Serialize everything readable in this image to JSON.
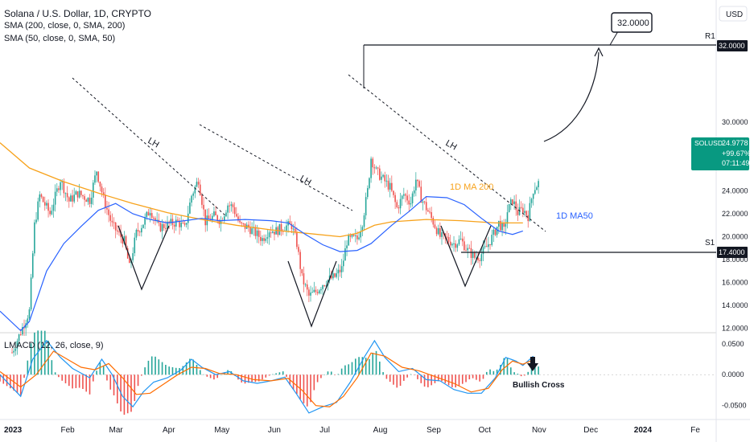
{
  "header": {
    "title": "Solana / U.S. Dollar, 1D, CRYPTO",
    "sma200_label": "SMA (200, close, 0, SMA, 200)",
    "sma50_label": "SMA (50, close, 0, SMA, 50)",
    "macd_label": "LMACD (12, 26, close, 9)"
  },
  "currency_button": "USD",
  "symbol_tag": {
    "symbol": "SOLUSD",
    "price": "24.9778",
    "change": "+99.67%",
    "countdown": "07:11:49",
    "color": "#089981"
  },
  "annotations": {
    "target_callout": "32.0000",
    "r1_label": "R1",
    "r1_price": "32.0000",
    "s1_label": "S1",
    "s1_price": "17.4000",
    "lh_labels": [
      "LH",
      "LH",
      "LH"
    ],
    "ma200_label": "1D MA 200",
    "ma50_label": "1D MA50",
    "bullish_cross": "Bullish Cross"
  },
  "colors": {
    "up": "#26a69a",
    "down": "#ef5350",
    "ma200": "#f7a21b",
    "ma50": "#2962ff",
    "macd": "#2196f3",
    "signal": "#ff6d00",
    "hist_up": "#26a69a",
    "hist_down": "#ef5350"
  },
  "chart_data": [
    {
      "type": "candlestick",
      "title": "Solana / U.S. Dollar, 1D, CRYPTO",
      "x_ticks": [
        "2023",
        "Feb",
        "Mar",
        "Apr",
        "May",
        "Jun",
        "Jul",
        "Aug",
        "Sep",
        "Oct",
        "Nov",
        "Dec",
        "2024",
        "Fe"
      ],
      "y_ticks": [
        "32.0000",
        "30.0000",
        "28.0000",
        "26.0000",
        "24.0000",
        "22.0000",
        "20.0000",
        "18.0000",
        "16.0000",
        "14.0000",
        "12.0000"
      ],
      "ylim": [
        11.9,
        36.8
      ],
      "x_range_days": [
        -7,
        408
      ],
      "price_path": [
        [
          0,
          9.9
        ],
        [
          10,
          13.5
        ],
        [
          13,
          21.0
        ],
        [
          16,
          23.6
        ],
        [
          22,
          22.0
        ],
        [
          28,
          25.0
        ],
        [
          33,
          23.1
        ],
        [
          38,
          23.8
        ],
        [
          45,
          23.2
        ],
        [
          49,
          25.8
        ],
        [
          53,
          23.3
        ],
        [
          58,
          21.0
        ],
        [
          62,
          20.2
        ],
        [
          65,
          19.6
        ],
        [
          68,
          17.3
        ],
        [
          72,
          20.3
        ],
        [
          76,
          21.2
        ],
        [
          80,
          22.4
        ],
        [
          85,
          20.8
        ],
        [
          91,
          21.1
        ],
        [
          96,
          21.3
        ],
        [
          100,
          20.7
        ],
        [
          104,
          23.6
        ],
        [
          108,
          25.0
        ],
        [
          112,
          21.3
        ],
        [
          117,
          21.8
        ],
        [
          121,
          21.4
        ],
        [
          125,
          22.8
        ],
        [
          128,
          22.6
        ],
        [
          132,
          21.0
        ],
        [
          137,
          20.8
        ],
        [
          141,
          20.3
        ],
        [
          145,
          19.8
        ],
        [
          149,
          20.6
        ],
        [
          153,
          20.5
        ],
        [
          158,
          20.9
        ],
        [
          162,
          21.0
        ],
        [
          165,
          19.4
        ],
        [
          168,
          16.4
        ],
        [
          172,
          14.8
        ],
        [
          176,
          15.2
        ],
        [
          180,
          15.9
        ],
        [
          184,
          16.3
        ],
        [
          187,
          16.5
        ],
        [
          191,
          17.2
        ],
        [
          194,
          19.6
        ],
        [
          197,
          19.8
        ],
        [
          200,
          19.8
        ],
        [
          203,
          21.3
        ],
        [
          206,
          24.0
        ],
        [
          208,
          26.9
        ],
        [
          211,
          25.7
        ],
        [
          215,
          25.0
        ],
        [
          219,
          24.3
        ],
        [
          223,
          22.5
        ],
        [
          227,
          23.7
        ],
        [
          231,
          23.0
        ],
        [
          234,
          25.0
        ],
        [
          237,
          23.4
        ],
        [
          240,
          22.5
        ],
        [
          244,
          21.3
        ],
        [
          248,
          20.0
        ],
        [
          252,
          19.8
        ],
        [
          256,
          19.4
        ],
        [
          260,
          19.7
        ],
        [
          264,
          18.8
        ],
        [
          268,
          18.2
        ],
        [
          271,
          18.3
        ],
        [
          275,
          19.1
        ],
        [
          279,
          20.2
        ],
        [
          282,
          21.2
        ],
        [
          285,
          20.5
        ],
        [
          287,
          22.2
        ],
        [
          290,
          23.2
        ],
        [
          293,
          22.1
        ],
        [
          296,
          22.4
        ],
        [
          299,
          21.8
        ],
        [
          302,
          24.1
        ],
        [
          305,
          24.7
        ]
      ],
      "sma200": [
        [
          -7,
          28.2
        ],
        [
          10,
          26.0
        ],
        [
          30,
          24.8
        ],
        [
          50,
          23.8
        ],
        [
          70,
          22.9
        ],
        [
          90,
          22.1
        ],
        [
          110,
          21.5
        ],
        [
          130,
          21.0
        ],
        [
          150,
          20.6
        ],
        [
          170,
          20.3
        ],
        [
          190,
          20.0
        ],
        [
          200,
          20.3
        ],
        [
          210,
          21.0
        ],
        [
          220,
          21.3
        ],
        [
          240,
          21.5
        ],
        [
          260,
          21.4
        ],
        [
          280,
          21.2
        ],
        [
          296,
          21.2
        ]
      ],
      "sma50": [
        [
          -7,
          13.5
        ],
        [
          5,
          11.8
        ],
        [
          10,
          12.6
        ],
        [
          20,
          17.0
        ],
        [
          30,
          19.4
        ],
        [
          40,
          20.9
        ],
        [
          50,
          22.3
        ],
        [
          60,
          22.9
        ],
        [
          70,
          22.0
        ],
        [
          80,
          21.5
        ],
        [
          90,
          21.2
        ],
        [
          100,
          21.4
        ],
        [
          110,
          21.6
        ],
        [
          120,
          21.4
        ],
        [
          135,
          21.5
        ],
        [
          150,
          21.4
        ],
        [
          160,
          21.2
        ],
        [
          170,
          20.2
        ],
        [
          180,
          19.3
        ],
        [
          190,
          18.7
        ],
        [
          200,
          18.8
        ],
        [
          208,
          19.4
        ],
        [
          220,
          21.0
        ],
        [
          230,
          22.2
        ],
        [
          240,
          23.5
        ],
        [
          252,
          23.4
        ],
        [
          262,
          22.8
        ],
        [
          272,
          21.6
        ],
        [
          282,
          20.5
        ],
        [
          290,
          20.2
        ],
        [
          296,
          20.5
        ]
      ],
      "ylabel": "USD"
    },
    {
      "type": "bar",
      "title": "LMACD (12, 26, close, 9)",
      "y_ticks": [
        "0.0500",
        "0.0000",
        "-0.0500"
      ],
      "ylim": [
        -0.066,
        0.064
      ],
      "macd": [
        [
          -7,
          0.0
        ],
        [
          5,
          -0.035
        ],
        [
          12,
          0.025
        ],
        [
          20,
          0.055
        ],
        [
          28,
          0.028
        ],
        [
          35,
          0.01
        ],
        [
          45,
          -0.005
        ],
        [
          52,
          0.025
        ],
        [
          58,
          0.0
        ],
        [
          64,
          -0.035
        ],
        [
          70,
          -0.052
        ],
        [
          76,
          -0.028
        ],
        [
          82,
          -0.012
        ],
        [
          90,
          -0.005
        ],
        [
          98,
          0.008
        ],
        [
          104,
          0.025
        ],
        [
          110,
          0.012
        ],
        [
          118,
          0.0
        ],
        [
          126,
          0.005
        ],
        [
          134,
          -0.01
        ],
        [
          142,
          -0.014
        ],
        [
          150,
          -0.01
        ],
        [
          158,
          -0.004
        ],
        [
          165,
          -0.032
        ],
        [
          172,
          -0.062
        ],
        [
          180,
          -0.052
        ],
        [
          188,
          -0.045
        ],
        [
          196,
          -0.012
        ],
        [
          204,
          0.028
        ],
        [
          210,
          0.055
        ],
        [
          216,
          0.028
        ],
        [
          224,
          0.005
        ],
        [
          232,
          0.01
        ],
        [
          240,
          -0.008
        ],
        [
          248,
          -0.01
        ],
        [
          256,
          -0.024
        ],
        [
          264,
          -0.03
        ],
        [
          272,
          -0.03
        ],
        [
          280,
          -0.005
        ],
        [
          286,
          0.028
        ],
        [
          292,
          0.022
        ],
        [
          296,
          0.015
        ],
        [
          302,
          0.03
        ]
      ],
      "signal": [
        [
          -7,
          0.005
        ],
        [
          5,
          -0.02
        ],
        [
          14,
          0.0
        ],
        [
          24,
          0.038
        ],
        [
          32,
          0.025
        ],
        [
          40,
          0.012
        ],
        [
          48,
          0.008
        ],
        [
          56,
          0.018
        ],
        [
          64,
          -0.005
        ],
        [
          72,
          -0.032
        ],
        [
          80,
          -0.03
        ],
        [
          88,
          -0.015
        ],
        [
          96,
          0.0
        ],
        [
          104,
          0.012
        ],
        [
          112,
          0.01
        ],
        [
          120,
          0.002
        ],
        [
          130,
          0.0
        ],
        [
          140,
          -0.008
        ],
        [
          150,
          -0.01
        ],
        [
          160,
          -0.006
        ],
        [
          168,
          -0.025
        ],
        [
          176,
          -0.05
        ],
        [
          184,
          -0.052
        ],
        [
          192,
          -0.035
        ],
        [
          200,
          -0.005
        ],
        [
          208,
          0.035
        ],
        [
          216,
          0.03
        ],
        [
          226,
          0.012
        ],
        [
          236,
          0.006
        ],
        [
          246,
          -0.004
        ],
        [
          256,
          -0.014
        ],
        [
          266,
          -0.028
        ],
        [
          276,
          -0.022
        ],
        [
          284,
          0.008
        ],
        [
          290,
          0.022
        ],
        [
          296,
          0.017
        ],
        [
          302,
          0.024
        ]
      ]
    }
  ]
}
